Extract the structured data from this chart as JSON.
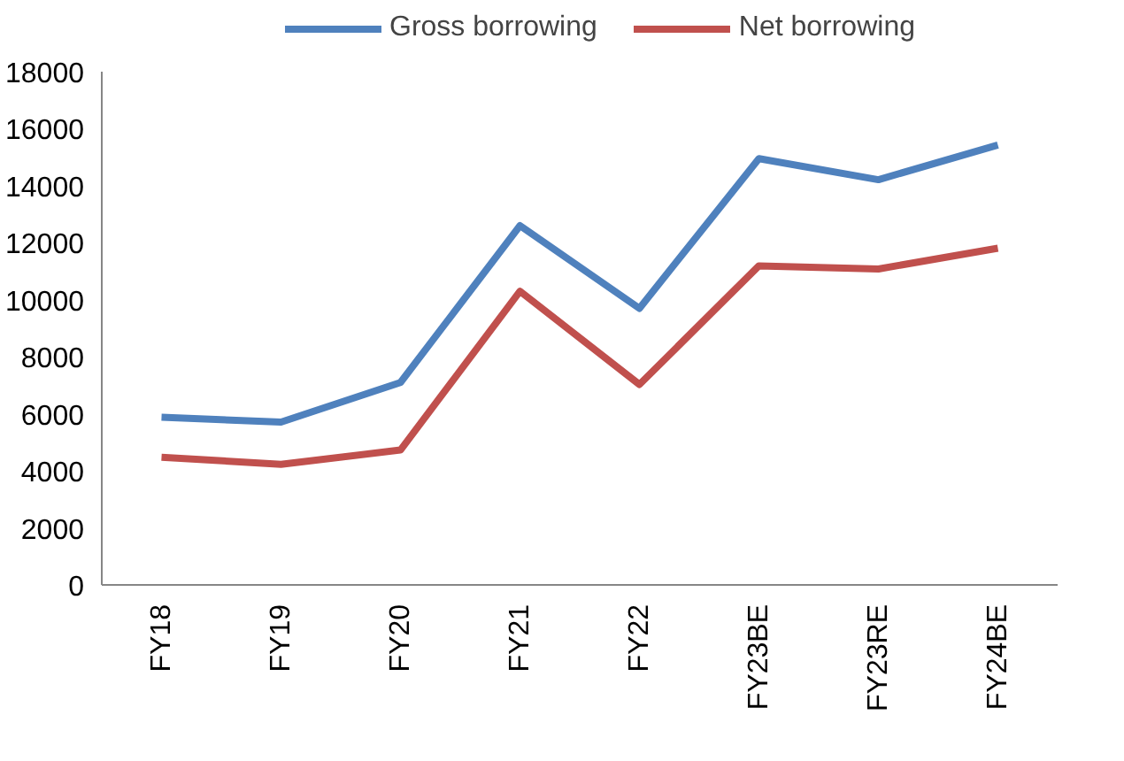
{
  "chart_data": {
    "type": "line",
    "categories": [
      "FY18",
      "FY19",
      "FY20",
      "FY21",
      "FY22",
      "FY23BE",
      "FY23RE",
      "FY24BE"
    ],
    "series": [
      {
        "name": "Gross borrowing",
        "color": "#4f81bd",
        "values": [
          5880,
          5710,
          7100,
          12600,
          9700,
          14950,
          14210,
          15430
        ]
      },
      {
        "name": "Net borrowing",
        "color": "#c0504d",
        "values": [
          4480,
          4230,
          4730,
          10300,
          7030,
          11190,
          11080,
          11810
        ]
      }
    ],
    "ylim": [
      0,
      18000
    ],
    "yticks": [
      0,
      2000,
      4000,
      6000,
      8000,
      10000,
      12000,
      14000,
      16000,
      18000
    ],
    "grid": false,
    "legend": "top",
    "marker": "none",
    "line_style": "solid"
  }
}
